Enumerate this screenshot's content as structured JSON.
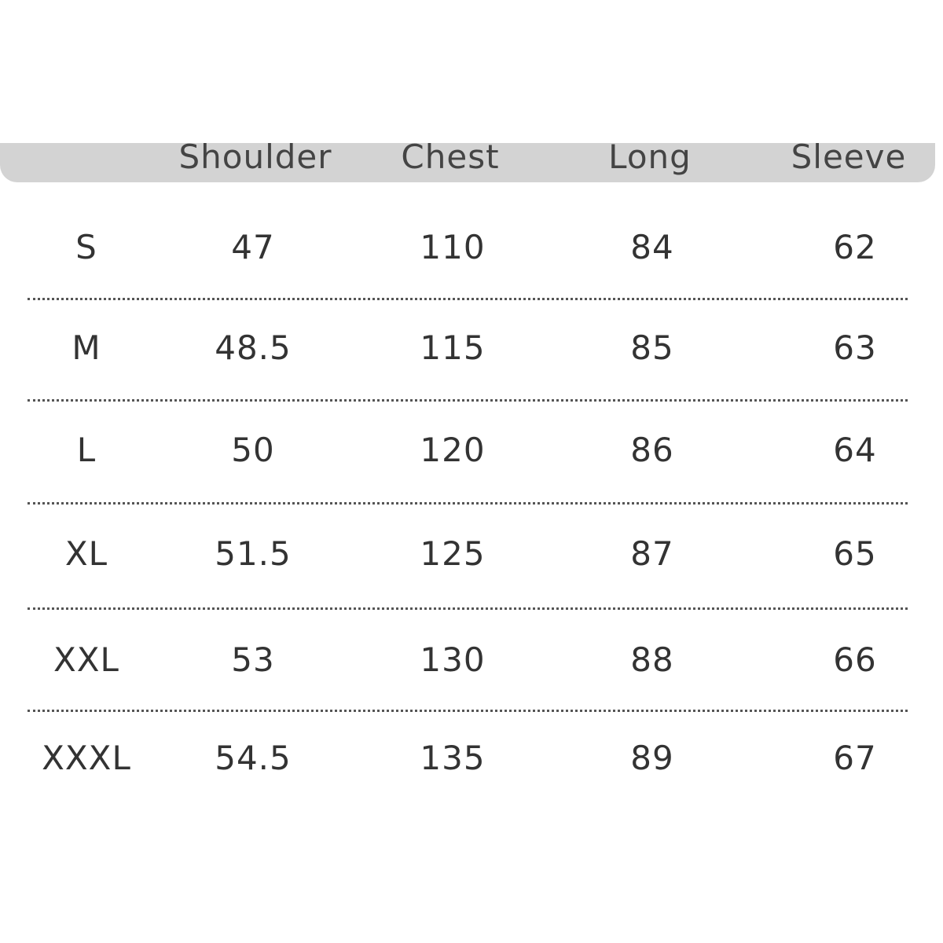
{
  "table": {
    "header": [
      "Shoulder",
      "Chest",
      "Long",
      "Sleeve"
    ],
    "rows": [
      [
        "S",
        47,
        110,
        84,
        62
      ],
      [
        "M",
        48.5,
        115,
        85,
        63
      ],
      [
        "L",
        50,
        120,
        86,
        64
      ],
      [
        "XL",
        51.5,
        125,
        87,
        65
      ],
      [
        "XXL",
        53,
        130,
        88,
        66
      ],
      [
        "XXXL",
        54.5,
        135,
        89,
        67
      ]
    ]
  }
}
